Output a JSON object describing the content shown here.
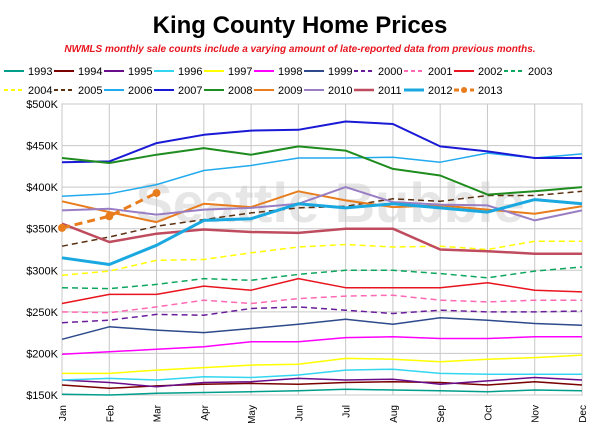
{
  "chart_data": {
    "type": "line",
    "title": "King County Home Prices",
    "subtitle": "NWMLS monthly sale counts include a varying amount of late-reported data from previous months.",
    "watermark": "Seattle Bubble",
    "xlabel": "",
    "ylabel": "",
    "categories": [
      "Jan",
      "Feb",
      "Mar",
      "Apr",
      "May",
      "Jun",
      "Jul",
      "Aug",
      "Sep",
      "Oct",
      "Nov",
      "Dec"
    ],
    "ylim": [
      150000,
      500000
    ],
    "yticks": [
      {
        "value": 150000,
        "label": "$150K"
      },
      {
        "value": 200000,
        "label": "$200K"
      },
      {
        "value": 250000,
        "label": "$250K"
      },
      {
        "value": 300000,
        "label": "$300K"
      },
      {
        "value": 350000,
        "label": "$350K"
      },
      {
        "value": 400000,
        "label": "$400K"
      },
      {
        "value": 450000,
        "label": "$450K"
      },
      {
        "value": 500000,
        "label": "$500K"
      }
    ],
    "grid": true,
    "legend_position": "top",
    "series": [
      {
        "name": "1993",
        "color": "#009e8a",
        "dash": "solid",
        "width": 1.5,
        "values": [
          151000,
          150000,
          152000,
          153000,
          154000,
          155000,
          157000,
          156000,
          155000,
          154000,
          156000,
          155000
        ]
      },
      {
        "name": "1994",
        "color": "#7a0000",
        "dash": "solid",
        "width": 1.5,
        "values": [
          162000,
          158000,
          161000,
          163000,
          164000,
          163000,
          165000,
          166000,
          165000,
          162000,
          166000,
          162000
        ]
      },
      {
        "name": "1995",
        "color": "#6a0d8a",
        "dash": "solid",
        "width": 1.5,
        "values": [
          168000,
          165000,
          160000,
          165000,
          166000,
          170000,
          168000,
          169000,
          163000,
          167000,
          171000,
          168000
        ]
      },
      {
        "name": "1996",
        "color": "#33d6f0",
        "dash": "solid",
        "width": 1.5,
        "values": [
          168000,
          170000,
          168000,
          172000,
          171000,
          174000,
          180000,
          181000,
          176000,
          175000,
          175000,
          175000
        ]
      },
      {
        "name": "1997",
        "color": "#ffff00",
        "dash": "solid",
        "width": 1.5,
        "values": [
          176000,
          176000,
          180000,
          183000,
          186000,
          187000,
          194000,
          193000,
          190000,
          193000,
          195000,
          198000
        ]
      },
      {
        "name": "1998",
        "color": "#ff00ff",
        "dash": "solid",
        "width": 1.5,
        "values": [
          199000,
          202000,
          205000,
          208000,
          214000,
          214000,
          219000,
          220000,
          218000,
          218000,
          220000,
          220000
        ]
      },
      {
        "name": "1999",
        "color": "#2e4a8c",
        "dash": "solid",
        "width": 1.5,
        "values": [
          217000,
          232000,
          228000,
          225000,
          230000,
          235000,
          241000,
          235000,
          243000,
          240000,
          236000,
          234000
        ]
      },
      {
        "name": "2000",
        "color": "#6a1d9a",
        "dash": "dashed",
        "width": 1.5,
        "values": [
          237000,
          240000,
          247000,
          246000,
          254000,
          256000,
          252000,
          248000,
          252000,
          250000,
          250000,
          251000
        ]
      },
      {
        "name": "2001",
        "color": "#ff69b4",
        "dash": "dashed",
        "width": 1.5,
        "values": [
          250000,
          249000,
          256000,
          264000,
          260000,
          266000,
          269000,
          270000,
          264000,
          262000,
          264000,
          264000
        ]
      },
      {
        "name": "2002",
        "color": "#e8141e",
        "dash": "solid",
        "width": 1.5,
        "values": [
          260000,
          271000,
          271000,
          281000,
          276000,
          290000,
          279000,
          279000,
          279000,
          285000,
          276000,
          274000
        ]
      },
      {
        "name": "2003",
        "color": "#0ca65e",
        "dash": "dashed",
        "width": 1.5,
        "values": [
          279000,
          278000,
          283000,
          290000,
          288000,
          295000,
          300000,
          300000,
          296000,
          291000,
          299000,
          304000
        ]
      },
      {
        "name": "2004",
        "color": "#ffff00",
        "dash": "dashed",
        "width": 1.5,
        "values": [
          294000,
          299000,
          312000,
          313000,
          321000,
          328000,
          331000,
          328000,
          329000,
          325000,
          335000,
          335000
        ]
      },
      {
        "name": "2005",
        "color": "#5a3010",
        "dash": "dashed",
        "width": 1.5,
        "values": [
          329000,
          340000,
          353000,
          361000,
          369000,
          375000,
          377000,
          386000,
          383000,
          390000,
          390000,
          395000
        ]
      },
      {
        "name": "2006",
        "color": "#22aaee",
        "dash": "solid",
        "width": 1.5,
        "values": [
          389000,
          392000,
          403000,
          420000,
          426000,
          435000,
          435000,
          436000,
          430000,
          441000,
          435000,
          440000
        ]
      },
      {
        "name": "2007",
        "color": "#1a1ad6",
        "dash": "solid",
        "width": 2,
        "values": [
          430000,
          431000,
          453000,
          463000,
          468000,
          469000,
          479000,
          476000,
          449000,
          443000,
          435000,
          435000
        ]
      },
      {
        "name": "2008",
        "color": "#1e8c1e",
        "dash": "solid",
        "width": 2,
        "values": [
          435000,
          429000,
          439000,
          447000,
          439000,
          449000,
          444000,
          422000,
          414000,
          391000,
          395000,
          400000
        ]
      },
      {
        "name": "2009",
        "color": "#e87d1e",
        "dash": "solid",
        "width": 2,
        "values": [
          383000,
          370000,
          358000,
          380000,
          376000,
          395000,
          384000,
          376000,
          378000,
          373000,
          368000,
          377000
        ]
      },
      {
        "name": "2010",
        "color": "#9a7ec4",
        "dash": "solid",
        "width": 2,
        "values": [
          372000,
          374000,
          367000,
          373000,
          375000,
          380000,
          400000,
          382000,
          379000,
          378000,
          360000,
          372000
        ]
      },
      {
        "name": "2011",
        "color": "#bf4c5e",
        "dash": "solid",
        "width": 2.5,
        "values": [
          356000,
          334000,
          344000,
          349000,
          346000,
          345000,
          350000,
          350000,
          325000,
          323000,
          320000,
          320000
        ]
      },
      {
        "name": "2012",
        "color": "#1aa8e0",
        "dash": "solid",
        "width": 3,
        "values": [
          315000,
          307000,
          330000,
          360000,
          362000,
          380000,
          375000,
          380000,
          375000,
          370000,
          385000,
          380000
        ]
      },
      {
        "name": "2013",
        "color": "#e87d1e",
        "dash": "dashed-dots",
        "width": 3,
        "values": [
          351000,
          365000,
          393000,
          null,
          null,
          null,
          null,
          null,
          null,
          null,
          null,
          null
        ]
      }
    ]
  }
}
